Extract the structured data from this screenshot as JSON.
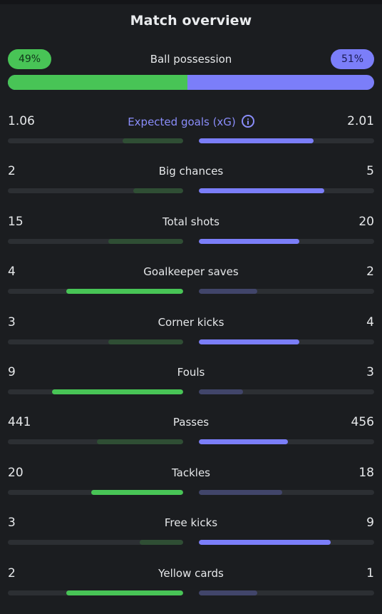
{
  "title": "Match overview",
  "colors": {
    "home": "#48c456",
    "away": "#7b7ef9",
    "home_dim": "#2f4e34",
    "away_dim": "#41456a",
    "track": "#2c2f33",
    "accent_label": "#8a8dfa"
  },
  "possession": {
    "label": "Ball possession",
    "home_text": "49%",
    "away_text": "51%",
    "home_share": 0.49,
    "away_share": 0.51
  },
  "stats": [
    {
      "key": "xg",
      "label": "Expected goals (xG)",
      "home": "1.06",
      "away": "2.01",
      "home_num": 1.06,
      "away_num": 2.01,
      "info_icon": "info-icon",
      "accent": true
    },
    {
      "key": "big-chances",
      "label": "Big chances",
      "home": "2",
      "away": "5",
      "home_num": 2,
      "away_num": 5
    },
    {
      "key": "total-shots",
      "label": "Total shots",
      "home": "15",
      "away": "20",
      "home_num": 15,
      "away_num": 20
    },
    {
      "key": "goalkeeper-saves",
      "label": "Goalkeeper saves",
      "home": "4",
      "away": "2",
      "home_num": 4,
      "away_num": 2
    },
    {
      "key": "corner-kicks",
      "label": "Corner kicks",
      "home": "3",
      "away": "4",
      "home_num": 3,
      "away_num": 4
    },
    {
      "key": "fouls",
      "label": "Fouls",
      "home": "9",
      "away": "3",
      "home_num": 9,
      "away_num": 3
    },
    {
      "key": "passes",
      "label": "Passes",
      "home": "441",
      "away": "456",
      "home_num": 441,
      "away_num": 456
    },
    {
      "key": "tackles",
      "label": "Tackles",
      "home": "20",
      "away": "18",
      "home_num": 20,
      "away_num": 18
    },
    {
      "key": "free-kicks",
      "label": "Free kicks",
      "home": "3",
      "away": "9",
      "home_num": 3,
      "away_num": 9
    },
    {
      "key": "yellow-cards",
      "label": "Yellow cards",
      "home": "2",
      "away": "1",
      "home_num": 2,
      "away_num": 1
    }
  ]
}
